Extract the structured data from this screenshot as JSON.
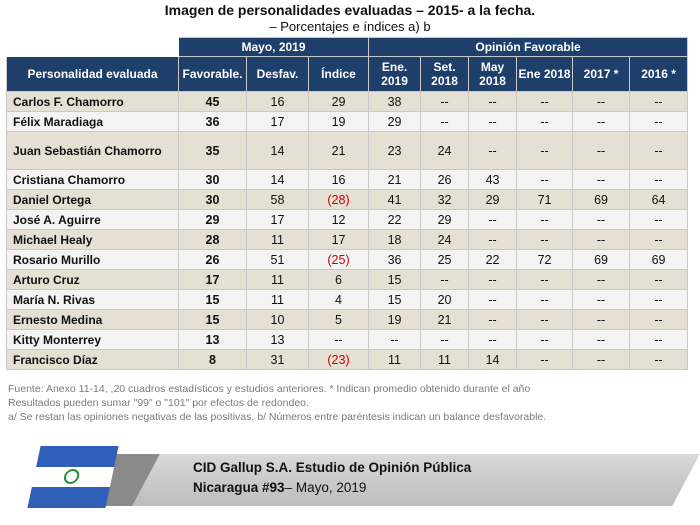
{
  "title": "Imagen de personalidades evaluadas – 2015- a la fecha.",
  "subtitle": "– Porcentajes e índices a) b",
  "header": {
    "col_name": "Personalidad evaluada",
    "group_may": "Mayo, 2019",
    "group_fav": "Opinión Favorable",
    "sub": [
      "Favorable.",
      "Desfav.",
      "Índice",
      "Ene. 2019",
      "Set. 2018",
      "May 2018",
      "Ene 2018",
      "2017 *",
      "2016 *"
    ]
  },
  "rows": [
    {
      "name": "Carlos F. Chamorro",
      "fav": "45",
      "desf": "16",
      "indice": "29",
      "ene2019": "38",
      "set2018": "--",
      "may2018": "--",
      "ene2018": "--",
      "y2017": "--",
      "y2016": "--"
    },
    {
      "name": "Félix Maradiaga",
      "fav": "36",
      "desf": "17",
      "indice": "19",
      "ene2019": "29",
      "set2018": "--",
      "may2018": "--",
      "ene2018": "--",
      "y2017": "--",
      "y2016": "--"
    },
    {
      "name": "Juan Sebastián Chamorro",
      "fav": "35",
      "desf": "14",
      "indice": "21",
      "ene2019": "23",
      "set2018": "24",
      "may2018": "--",
      "ene2018": "--",
      "y2017": "--",
      "y2016": "--"
    },
    {
      "name": "Cristiana Chamorro",
      "fav": "30",
      "desf": "14",
      "indice": "16",
      "ene2019": "21",
      "set2018": "26",
      "may2018": "43",
      "ene2018": "--",
      "y2017": "--",
      "y2016": "--"
    },
    {
      "name": "Daniel Ortega",
      "fav": "30",
      "desf": "58",
      "indice": "(28)",
      "ene2019": "41",
      "set2018": "32",
      "may2018": "29",
      "ene2018": "71",
      "y2017": "69",
      "y2016": "64"
    },
    {
      "name": "José A. Aguirre",
      "fav": "29",
      "desf": "17",
      "indice": "12",
      "ene2019": "22",
      "set2018": "29",
      "may2018": "--",
      "ene2018": "--",
      "y2017": "--",
      "y2016": "--"
    },
    {
      "name": "Michael Healy",
      "fav": "28",
      "desf": "11",
      "indice": "17",
      "ene2019": "18",
      "set2018": "24",
      "may2018": "--",
      "ene2018": "--",
      "y2017": "--",
      "y2016": "--"
    },
    {
      "name": "Rosario Murillo",
      "fav": "26",
      "desf": "51",
      "indice": "(25)",
      "ene2019": "36",
      "set2018": "25",
      "may2018": "22",
      "ene2018": "72",
      "y2017": "69",
      "y2016": "69"
    },
    {
      "name": "Arturo Cruz",
      "fav": "17",
      "desf": "11",
      "indice": "6",
      "ene2019": "15",
      "set2018": "--",
      "may2018": "--",
      "ene2018": "--",
      "y2017": "--",
      "y2016": "--"
    },
    {
      "name": "María N. Rivas",
      "fav": "15",
      "desf": "11",
      "indice": "4",
      "ene2019": "15",
      "set2018": "20",
      "may2018": "--",
      "ene2018": "--",
      "y2017": "--",
      "y2016": "--"
    },
    {
      "name": "Ernesto Medina",
      "fav": "15",
      "desf": "10",
      "indice": "5",
      "ene2019": "19",
      "set2018": "21",
      "may2018": "--",
      "ene2018": "--",
      "y2017": "--",
      "y2016": "--"
    },
    {
      "name": "Kitty Monterrey",
      "fav": "13",
      "desf": "13",
      "indice": "--",
      "ene2019": "--",
      "set2018": "--",
      "may2018": "--",
      "ene2018": "--",
      "y2017": "--",
      "y2016": "--"
    },
    {
      "name": "Francisco Díaz",
      "fav": "8",
      "desf": "31",
      "indice": "(23)",
      "ene2019": "11",
      "set2018": "11",
      "may2018": "14",
      "ene2018": "--",
      "y2017": "--",
      "y2016": "--"
    }
  ],
  "notes": {
    "line1": "Fuente: Anexo 11-14, ,20 cuadros estadísticos y estudios anteriores. * Indican promedio obtenido durante el año",
    "line2": "Resultados pueden sumar \"99\" o \"101\" por efectos de redondeo.",
    "line3": "a/ Se restan las opiniones negativas de las positivas. b/ Números entre paréntesis indican un balance desfavorable."
  },
  "banner": {
    "line1": "CID Gallup S.A. Estudio de Opinión Pública",
    "line2_bold": "Nicaragua #93",
    "line2_rest": "– Mayo, 2019"
  },
  "colors": {
    "header_bg": "#1f3f6b",
    "row_shade": "#e5e0d3",
    "row_plain": "#f3f3f3",
    "negative": "#cc0000",
    "flag_blue": "#2f5fb8"
  }
}
